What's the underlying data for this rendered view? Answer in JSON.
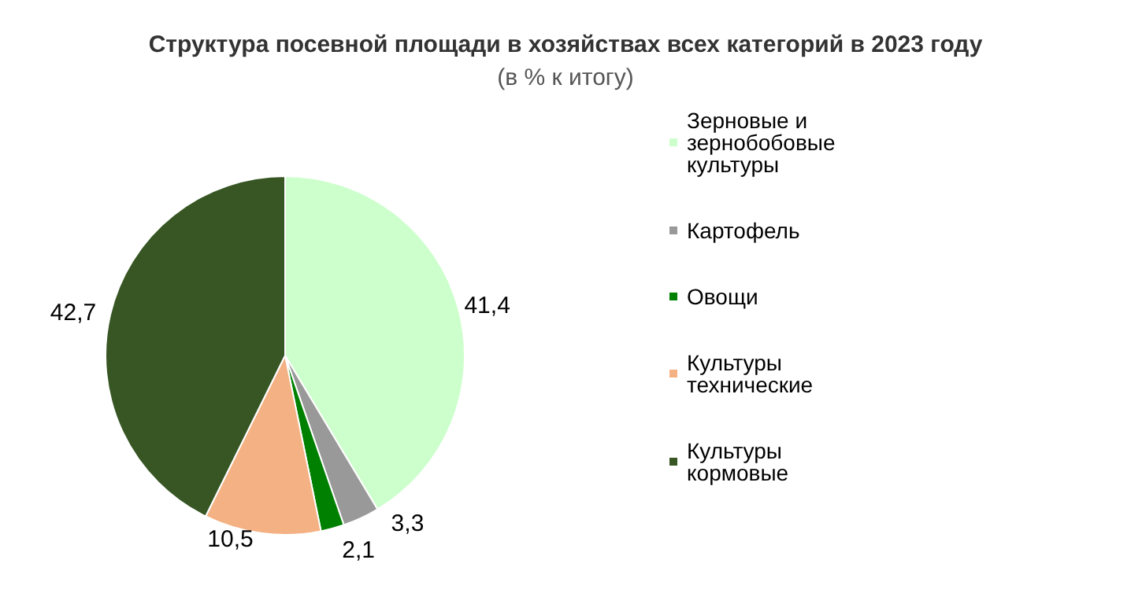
{
  "chart_data": {
    "type": "pie",
    "title": "Структура посевной площади в хозяйствах всех категорий в 2023 году",
    "subtitle": "(в % к итогу)",
    "categories": [
      "Зерновые и зернобобовые культуры",
      "Картофель",
      "Овощи",
      "Культуры технические",
      "Культуры кормовые"
    ],
    "values": [
      41.4,
      3.3,
      2.1,
      10.5,
      42.7
    ],
    "value_labels": [
      "41,4",
      "3,3",
      "2,1",
      "10,5",
      "42,7"
    ],
    "colors": [
      "#ccffcc",
      "#999999",
      "#008000",
      "#f4b183",
      "#375623"
    ],
    "legend": "right"
  }
}
